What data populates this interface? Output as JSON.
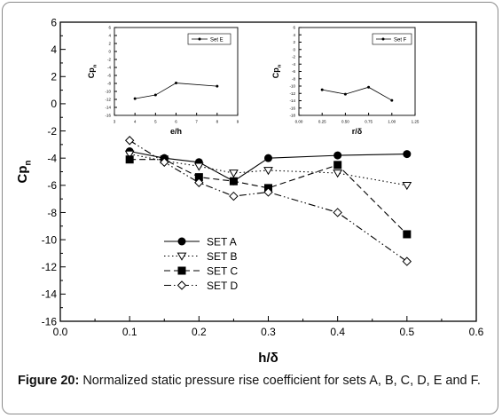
{
  "caption": {
    "label": "Figure 20:",
    "text": " Normalized static pressure rise coefficient for sets A, B, C, D, E and F."
  },
  "chart_data": [
    {
      "type": "line",
      "xlabel": "h/δ",
      "ylabel": "Cp",
      "ylabel_sub": "n",
      "xlim": [
        0.0,
        0.6
      ],
      "ylim": [
        -16,
        6
      ],
      "xticks": [
        "0.0",
        "0.1",
        "0.2",
        "0.3",
        "0.4",
        "0.5",
        "0.6"
      ],
      "yticks": [
        "6",
        "4",
        "2",
        "0",
        "-2",
        "-4",
        "-6",
        "-8",
        "-10",
        "-12",
        "-14",
        "-16"
      ],
      "legend_position": "lower-left",
      "series": [
        {
          "name": "SET A",
          "marker": "filled-circle",
          "line": "solid",
          "x": [
            0.1,
            0.15,
            0.2,
            0.25,
            0.3,
            0.4,
            0.5
          ],
          "y": [
            -3.5,
            -4.0,
            -4.3,
            -5.7,
            -4.0,
            -3.8,
            -3.7
          ]
        },
        {
          "name": "SET B",
          "marker": "open-triangle-down",
          "line": "dotted",
          "x": [
            0.1,
            0.15,
            0.2,
            0.25,
            0.3,
            0.4,
            0.5
          ],
          "y": [
            -3.7,
            -4.2,
            -4.6,
            -5.1,
            -4.9,
            -5.1,
            -6.0
          ]
        },
        {
          "name": "SET C",
          "marker": "filled-square",
          "line": "dashed",
          "x": [
            0.1,
            0.15,
            0.2,
            0.25,
            0.3,
            0.4,
            0.5
          ],
          "y": [
            -4.1,
            -4.1,
            -5.4,
            -5.7,
            -6.2,
            -4.5,
            -9.6
          ]
        },
        {
          "name": "SET D",
          "marker": "open-diamond",
          "line": "dashdotdot",
          "x": [
            0.1,
            0.15,
            0.2,
            0.25,
            0.3,
            0.4,
            0.5
          ],
          "y": [
            -2.7,
            -4.3,
            -5.8,
            -6.8,
            -6.5,
            -8.0,
            -11.6
          ]
        }
      ]
    },
    {
      "type": "line",
      "xlabel": "e/h",
      "ylabel": "Cp",
      "ylabel_sub": "n",
      "xlim": [
        3,
        9
      ],
      "ylim": [
        -16,
        6
      ],
      "xticks": [
        "3",
        "4",
        "5",
        "6",
        "7",
        "8",
        "9"
      ],
      "yticks": [
        "6",
        "4",
        "2",
        "0",
        "-2",
        "-4",
        "-6",
        "-8",
        "-10",
        "-12",
        "-14",
        "-16"
      ],
      "legend_position": "top-right",
      "series": [
        {
          "name": "Set E",
          "marker": "small-filled-circle",
          "line": "solid",
          "x": [
            4,
            5,
            6,
            8
          ],
          "y": [
            -11.8,
            -10.9,
            -7.9,
            -8.7
          ]
        }
      ]
    },
    {
      "type": "line",
      "xlabel": "r/δ",
      "ylabel": "Cp",
      "ylabel_sub": "n",
      "xlim": [
        0.0,
        1.25
      ],
      "ylim": [
        -18,
        6
      ],
      "xticks": [
        "0.00",
        "0.25",
        "0.50",
        "0.75",
        "1.00",
        "1.25"
      ],
      "yticks": [
        "6",
        "4",
        "2",
        "0",
        "-2",
        "-4",
        "-6",
        "-8",
        "-10",
        "-12",
        "-14",
        "-16",
        "-18"
      ],
      "legend_position": "top-right",
      "series": [
        {
          "name": "Set F",
          "marker": "small-filled-circle",
          "line": "solid",
          "x": [
            0.25,
            0.5,
            0.75,
            1.0
          ],
          "y": [
            -11.0,
            -12.2,
            -10.3,
            -13.9
          ]
        }
      ]
    }
  ]
}
